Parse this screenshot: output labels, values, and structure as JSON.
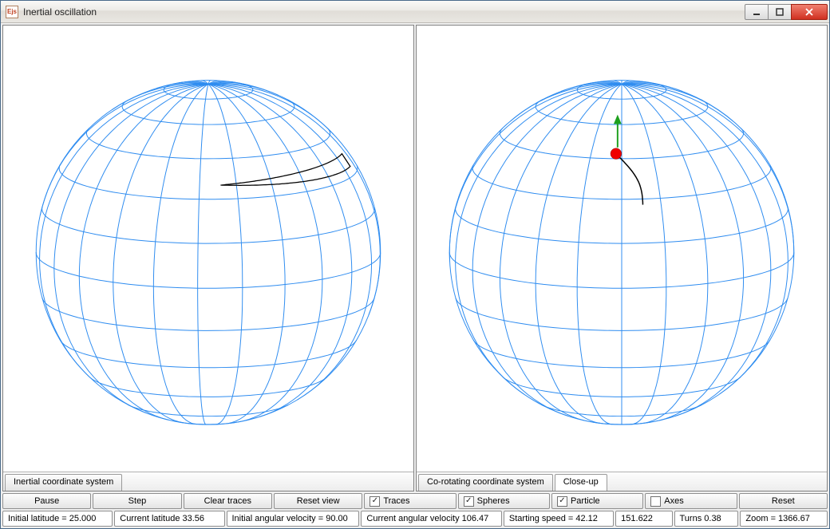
{
  "window": {
    "title": "Inertial oscillation",
    "icon_text": "Ejs"
  },
  "panes": {
    "left_tab": "Inertial coordinate system",
    "right_tab_active": "Co-rotating coordinate system",
    "right_tab_inactive": "Close-up"
  },
  "buttons": {
    "pause": "Pause",
    "step": "Step",
    "clear_traces": "Clear traces",
    "reset_view": "Reset view",
    "reset": "Reset"
  },
  "checkboxes": {
    "traces": {
      "label": "Traces",
      "checked": true
    },
    "spheres": {
      "label": "Spheres",
      "checked": true
    },
    "particle": {
      "label": "Particle",
      "checked": true
    },
    "axes": {
      "label": "Axes",
      "checked": false
    }
  },
  "status": {
    "initial_latitude": "Initial latitude = 25.000",
    "current_latitude": "Current latitude  33.56",
    "initial_angvel": "Initial angular velocity = 90.00",
    "current_angvel": "Current angular velocity  106.47",
    "starting_speed": "Starting speed = 42.12",
    "val": "151.622",
    "turns": "Turns 0.38",
    "zoom": "Zoom = 1366.67"
  },
  "sphere": {
    "line_color": "#2e8cf0",
    "line_width": 1,
    "trace_color": "#000000",
    "particle_color": "#f00000",
    "arrow_color": "#1ea01e"
  }
}
